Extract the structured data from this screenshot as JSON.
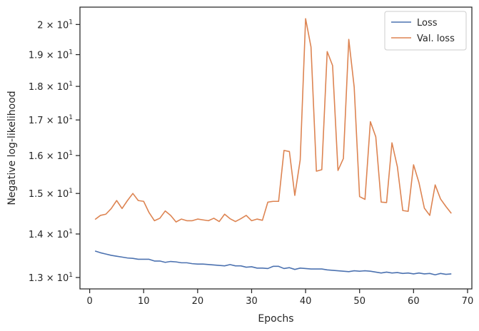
{
  "chart_data": {
    "type": "line",
    "xlabel": "Epochs",
    "ylabel": "Negative log-likelihood",
    "yscale": "log",
    "xlim": [
      -1.8,
      70.8
    ],
    "ylim": [
      12.75,
      20.6
    ],
    "x_ticks": [
      {
        "value": 0,
        "label": "0"
      },
      {
        "value": 10,
        "label": "10"
      },
      {
        "value": 20,
        "label": "20"
      },
      {
        "value": 30,
        "label": "30"
      },
      {
        "value": 40,
        "label": "40"
      },
      {
        "value": 50,
        "label": "50"
      },
      {
        "value": 60,
        "label": "60"
      },
      {
        "value": 70,
        "label": "70"
      }
    ],
    "y_ticks": [
      {
        "value": 13,
        "mantissa": "1.3",
        "label": "1.3 × 10^1"
      },
      {
        "value": 14,
        "mantissa": "1.4",
        "label": "1.4 × 10^1"
      },
      {
        "value": 15,
        "mantissa": "1.5",
        "label": "1.5 × 10^1"
      },
      {
        "value": 16,
        "mantissa": "1.6",
        "label": "1.6 × 10^1"
      },
      {
        "value": 17,
        "mantissa": "1.7",
        "label": "1.7 × 10^1"
      },
      {
        "value": 18,
        "mantissa": "1.8",
        "label": "1.8 × 10^1"
      },
      {
        "value": 19,
        "mantissa": "1.9",
        "label": "1.9 × 10^1"
      },
      {
        "value": 20,
        "mantissa": "2",
        "label": "2 × 10^1"
      }
    ],
    "tick_format": {
      "times": "×",
      "base": "10",
      "exponent": "1"
    },
    "x": [
      1,
      2,
      3,
      4,
      5,
      6,
      7,
      8,
      9,
      10,
      11,
      12,
      13,
      14,
      15,
      16,
      17,
      18,
      19,
      20,
      21,
      22,
      23,
      24,
      25,
      26,
      27,
      28,
      29,
      30,
      31,
      32,
      33,
      34,
      35,
      36,
      37,
      38,
      39,
      40,
      41,
      42,
      43,
      44,
      45,
      46,
      47,
      48,
      49,
      50,
      51,
      52,
      53,
      54,
      55,
      56,
      57,
      58,
      59,
      60,
      61,
      62,
      63,
      64,
      65,
      66,
      67
    ],
    "series": [
      {
        "name": "Loss",
        "color": "#4c72b0",
        "values": [
          13.6,
          13.56,
          13.53,
          13.5,
          13.48,
          13.46,
          13.44,
          13.43,
          13.41,
          13.41,
          13.41,
          13.37,
          13.37,
          13.34,
          13.36,
          13.35,
          13.33,
          13.33,
          13.31,
          13.3,
          13.3,
          13.29,
          13.28,
          13.27,
          13.26,
          13.29,
          13.26,
          13.26,
          13.23,
          13.24,
          13.21,
          13.21,
          13.2,
          13.25,
          13.25,
          13.2,
          13.22,
          13.18,
          13.21,
          13.2,
          13.19,
          13.19,
          13.19,
          13.17,
          13.16,
          13.15,
          13.14,
          13.13,
          13.15,
          13.14,
          13.15,
          13.14,
          13.12,
          13.1,
          13.12,
          13.1,
          13.11,
          13.09,
          13.1,
          13.08,
          13.1,
          13.08,
          13.09,
          13.06,
          13.09,
          13.07,
          13.08
        ]
      },
      {
        "name": "Val. loss",
        "color": "#dd8452",
        "values": [
          14.35,
          14.45,
          14.48,
          14.62,
          14.82,
          14.62,
          14.82,
          15.0,
          14.82,
          14.8,
          14.52,
          14.32,
          14.38,
          14.56,
          14.45,
          14.29,
          14.36,
          14.32,
          14.32,
          14.36,
          14.34,
          14.32,
          14.38,
          14.3,
          14.48,
          14.37,
          14.3,
          14.37,
          14.45,
          14.32,
          14.36,
          14.33,
          14.78,
          14.8,
          14.8,
          16.14,
          16.11,
          14.95,
          15.88,
          20.2,
          19.25,
          15.58,
          15.62,
          19.1,
          18.65,
          15.6,
          15.92,
          19.5,
          17.98,
          14.92,
          14.85,
          16.95,
          16.52,
          14.78,
          14.77,
          16.35,
          15.7,
          14.57,
          14.55,
          15.75,
          15.28,
          14.63,
          14.45,
          15.22,
          14.86,
          14.67,
          14.5
        ]
      }
    ],
    "legend": {
      "position": "top-right"
    },
    "grid": false
  }
}
